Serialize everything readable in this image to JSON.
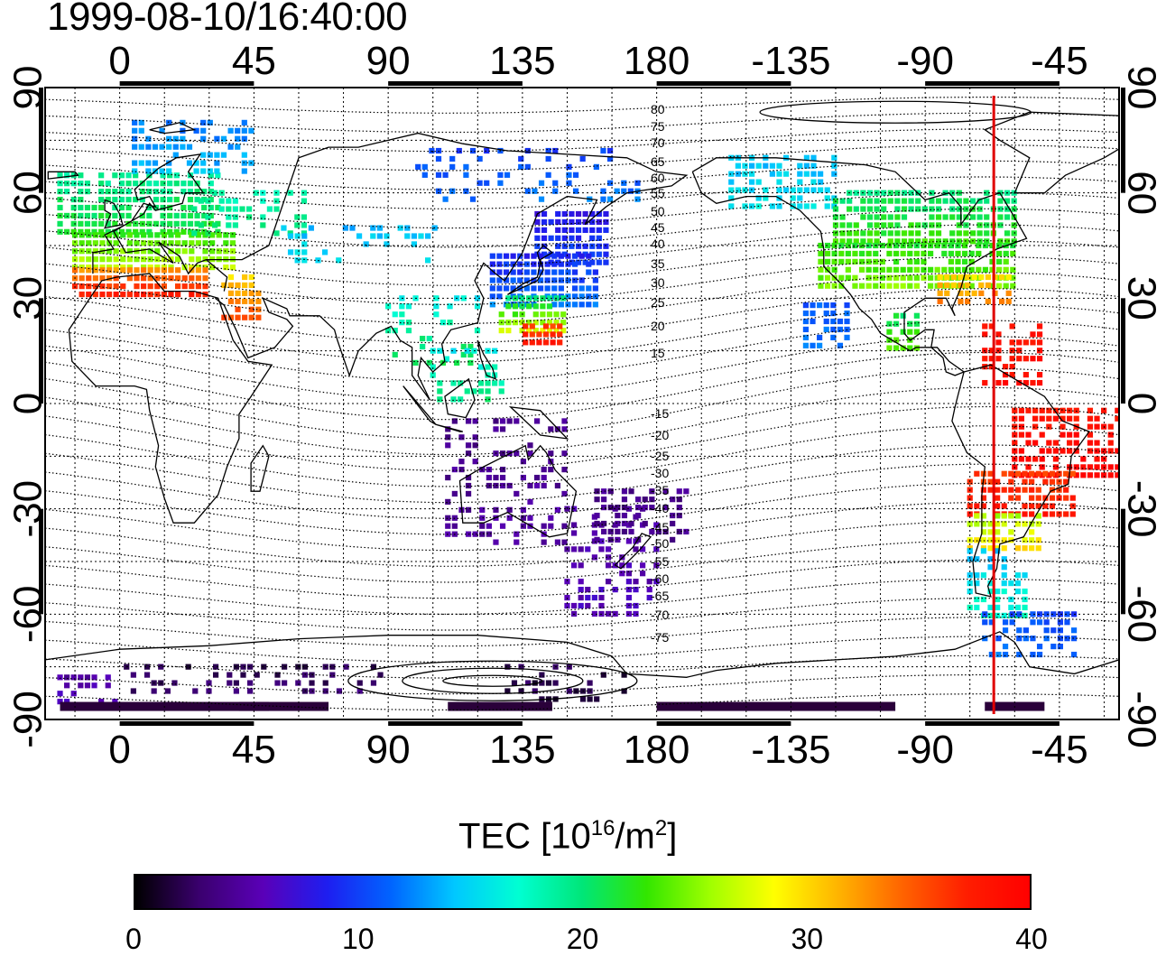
{
  "timestamp": "1999-08-10/16:40:00",
  "map": {
    "projection": "equirectangular, centered on 135E (longitude range -25 to 335)",
    "top_longitude_labels": [
      "0",
      "45",
      "90",
      "135",
      "180",
      "-135",
      "-90",
      "-45"
    ],
    "bottom_longitude_labels": [
      "0",
      "45",
      "90",
      "135",
      "180",
      "-135",
      "-90",
      "-45"
    ],
    "left_latitude_labels": [
      "90",
      "60",
      "30",
      "0",
      "-30",
      "-60",
      "-90"
    ],
    "right_latitude_labels": [
      "90",
      "60",
      "30",
      "0",
      "-30",
      "-60",
      "-90"
    ],
    "grid": "dotted, every 15 degrees",
    "magnetic_latitude_labels": [
      "80",
      "75",
      "70",
      "65",
      "60",
      "55",
      "50",
      "45",
      "40",
      "35",
      "30",
      "25",
      "20",
      "15",
      "-15",
      "-20",
      "-25",
      "-30",
      "-35",
      "-40",
      "-45",
      "-50",
      "-55",
      "-60",
      "-65",
      "-70",
      "-75"
    ],
    "meridian_marker": {
      "longitude": -67,
      "color": "#e00000"
    }
  },
  "colorbar": {
    "title_main": "TEC  [10",
    "title_sup1": "16",
    "title_mid": "/m",
    "title_sup2": "2",
    "title_end": "]",
    "ticks": [
      "0",
      "10",
      "20",
      "30",
      "40"
    ],
    "range": [
      0,
      40
    ],
    "colors": [
      "#000000",
      "#3a006e",
      "#5a00b8",
      "#1e1ef0",
      "#0064ff",
      "#00c8ff",
      "#00ffd2",
      "#00e678",
      "#32e600",
      "#a0ff00",
      "#ffff00",
      "#ffb400",
      "#ff6400",
      "#ff1e00",
      "#ff0000"
    ]
  }
}
